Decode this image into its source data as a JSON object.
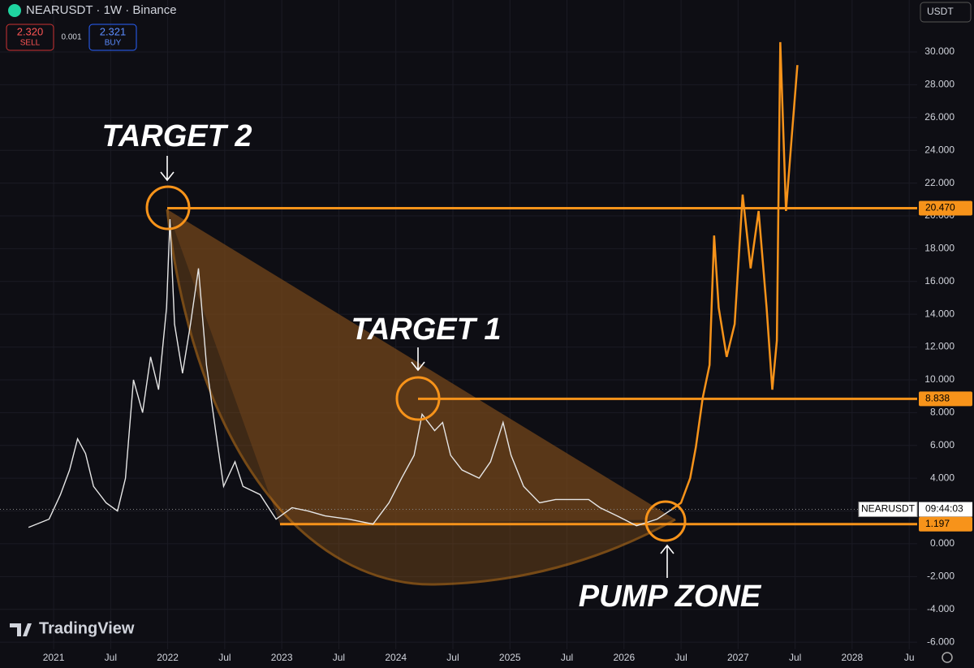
{
  "header": {
    "symbol": "NEARUSDT · 1W · Binance",
    "sell_price": "2.320",
    "sell_label": "SELL",
    "spread": "0.001",
    "buy_price": "2.321",
    "buy_label": "BUY",
    "currency": "USDT"
  },
  "chart_data": {
    "type": "line",
    "series": [
      {
        "name": "NEARUSDT",
        "color": "#e6e6e6",
        "x": [
          2020.78,
          2020.96,
          2021.06,
          2021.14,
          2021.21,
          2021.28,
          2021.35,
          2021.46,
          2021.56,
          2021.63,
          2021.7,
          2021.78,
          2021.85,
          2021.92,
          2021.99,
          2022.02,
          2022.06,
          2022.13,
          2022.2,
          2022.27,
          2022.34,
          2022.42,
          2022.49,
          2022.59,
          2022.66,
          2022.81,
          2022.95,
          2023.09,
          2023.23,
          2023.38,
          2023.59,
          2023.8,
          2023.94,
          2024.05,
          2024.16,
          2024.23,
          2024.34,
          2024.41,
          2024.48,
          2024.58,
          2024.73,
          2024.83,
          2024.94,
          2025.01,
          2025.12,
          2025.26,
          2025.4,
          2025.54,
          2025.69,
          2025.79,
          2025.94,
          2026.11,
          2026.29,
          2026.42
        ],
        "values": [
          1.0,
          1.5,
          3,
          4.5,
          6.4,
          5.5,
          3.5,
          2.5,
          2,
          4,
          10,
          8,
          11.4,
          9.4,
          14.4,
          19.8,
          13.4,
          10.4,
          13.4,
          16.8,
          10.9,
          6.9,
          3.5,
          5,
          3.5,
          3,
          1.5,
          2.2,
          2,
          1.7,
          1.5,
          1.2,
          2.5,
          4,
          5.4,
          7.9,
          6.9,
          7.4,
          5.4,
          4.5,
          4,
          5,
          7.4,
          5.4,
          3.5,
          2.5,
          2.7,
          2.7,
          2.7,
          2.2,
          1.7,
          1.1,
          1.5,
          2.1
        ]
      },
      {
        "name": "Projection",
        "color": "#f7931a",
        "x": [
          2026.42,
          2026.5,
          2026.58,
          2026.63,
          2026.69,
          2026.75,
          2026.79,
          2026.83,
          2026.9,
          2026.97,
          2027.04,
          2027.11,
          2027.18,
          2027.25,
          2027.3,
          2027.34,
          2027.37,
          2027.42,
          2027.47,
          2027.52
        ],
        "values": [
          2.1,
          2.5,
          4,
          5.9,
          8.9,
          10.9,
          18.8,
          14.4,
          11.4,
          13.4,
          21.3,
          16.8,
          20.3,
          14.4,
          9.4,
          12.4,
          30.6,
          20.3,
          24.8,
          29.2
        ]
      }
    ],
    "levels": [
      {
        "value": 20.47,
        "label": "20.470"
      },
      {
        "value": 8.838,
        "label": "8.838"
      },
      {
        "value": 1.197,
        "label": "1.197"
      }
    ],
    "annotations": [
      "TARGET 2",
      "TARGET 1",
      "PUMP ZONE"
    ],
    "price_label": {
      "symbol": "NEARUSDT",
      "countdown": "09:44:03"
    },
    "xlim": [
      2020.53,
      2028.57
    ],
    "xticks": [
      2021,
      {
        "value": 2021.5,
        "label": "Jul"
      },
      2022,
      {
        "value": 2022.5,
        "label": "Jul"
      },
      2023,
      {
        "value": 2023.5,
        "label": "Jul"
      },
      2024,
      {
        "value": 2024.5,
        "label": "Jul"
      },
      2025,
      {
        "value": 2025.5,
        "label": "Jul"
      },
      2026,
      {
        "value": 2026.5,
        "label": "Jul"
      },
      2027,
      {
        "value": 2027.5,
        "label": "Jul"
      },
      2028,
      {
        "value": 2028.5,
        "label": "Ju"
      }
    ],
    "ylim": [
      -6.44,
      33.17
    ],
    "yticks": [
      {
        "value": 30,
        "label": "30.000"
      },
      {
        "value": 28,
        "label": "28.000"
      },
      {
        "value": 26,
        "label": "26.000"
      },
      {
        "value": 24,
        "label": "24.000"
      },
      {
        "value": 22,
        "label": "22.000"
      },
      {
        "value": 20,
        "label": "20.000"
      },
      {
        "value": 18,
        "label": "18.000"
      },
      {
        "value": 16,
        "label": "16.000"
      },
      {
        "value": 14,
        "label": "14.000"
      },
      {
        "value": 12,
        "label": "12.000"
      },
      {
        "value": 10,
        "label": "10.000"
      },
      {
        "value": 8,
        "label": "8.000"
      },
      {
        "value": 6,
        "label": "6.000"
      },
      {
        "value": 4,
        "label": "4.000"
      },
      {
        "value": 2,
        "label": "2.000"
      },
      {
        "value": 0,
        "label": "0.000"
      },
      {
        "value": -2,
        "label": "-2.000"
      },
      {
        "value": -4,
        "label": "-4.000"
      },
      {
        "value": -6,
        "label": "-6.000"
      }
    ],
    "grid": true,
    "brand": "TradingView"
  }
}
